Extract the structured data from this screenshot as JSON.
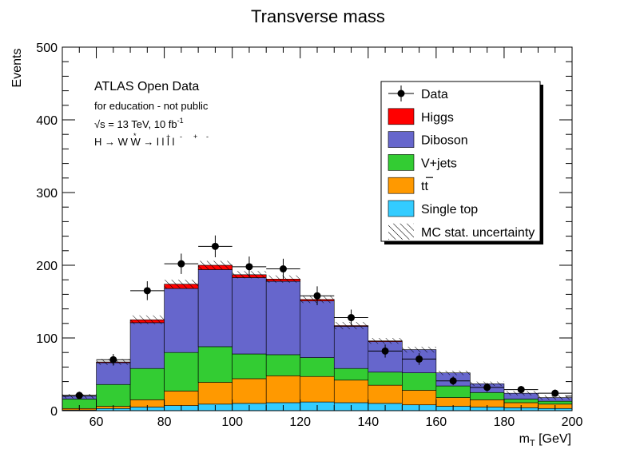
{
  "chart_data": {
    "type": "bar",
    "title": "Transverse mass",
    "xlabel": "m_T [GeV]",
    "xlabel_main": "m",
    "xlabel_sub": "T",
    "xlabel_unit": " [GeV]",
    "ylabel": "Events",
    "xlim": [
      50,
      200
    ],
    "ylim": [
      0,
      500
    ],
    "x_ticks": [
      60,
      80,
      100,
      120,
      140,
      160,
      180,
      200
    ],
    "y_ticks": [
      0,
      100,
      200,
      300,
      400,
      500
    ],
    "bin_edges": [
      50,
      60,
      70,
      80,
      90,
      100,
      110,
      120,
      130,
      140,
      150,
      160,
      170,
      180,
      190,
      200
    ],
    "stack_order": [
      "Single top",
      "tt",
      "V+jets",
      "Diboson",
      "Higgs"
    ],
    "series": [
      {
        "name": "Single top",
        "color": "#33ccff",
        "values": [
          1,
          3,
          5,
          7,
          9,
          10,
          11,
          12,
          11,
          10,
          8,
          6,
          5,
          4,
          3
        ]
      },
      {
        "name": "tt",
        "color": "#ff9900",
        "values": [
          2,
          3,
          10,
          20,
          30,
          34,
          37,
          35,
          31,
          25,
          20,
          12,
          10,
          7,
          6
        ]
      },
      {
        "name": "V+jets",
        "color": "#33cc33",
        "values": [
          13,
          30,
          43,
          53,
          49,
          34,
          29,
          26,
          16,
          18,
          24,
          16,
          10,
          5,
          4
        ]
      },
      {
        "name": "Diboson",
        "color": "#6666cc",
        "values": [
          4,
          30,
          63,
          88,
          106,
          105,
          101,
          78,
          58,
          42,
          32,
          18,
          12,
          8,
          5
        ]
      },
      {
        "name": "Higgs",
        "color": "#ff0000",
        "values": [
          0,
          1,
          4,
          6,
          6,
          4,
          3,
          2,
          1,
          1,
          0,
          0,
          0,
          0,
          0
        ]
      }
    ],
    "mc_uncertainty": [
      3,
      4,
      6,
      6,
      6,
      5,
      5,
      5,
      5,
      4,
      4,
      3,
      3,
      3,
      3
    ],
    "data": {
      "name": "Data",
      "x": [
        55,
        65,
        75,
        85,
        95,
        105,
        115,
        125,
        135,
        145,
        155,
        165,
        175,
        185,
        195
      ],
      "y": [
        21,
        70,
        165,
        202,
        226,
        198,
        195,
        158,
        128,
        82,
        71,
        41,
        32,
        29,
        24
      ],
      "yerr": [
        5,
        8,
        13,
        14,
        15,
        14,
        14,
        13,
        11,
        9,
        8,
        6,
        6,
        5,
        5
      ]
    },
    "legend": {
      "position": "top-right",
      "entries": [
        {
          "label": "Data",
          "kind": "marker"
        },
        {
          "label": "Higgs",
          "kind": "box",
          "color": "#ff0000"
        },
        {
          "label": "Diboson",
          "kind": "box",
          "color": "#6666cc"
        },
        {
          "label": "V+jets",
          "kind": "box",
          "color": "#33cc33"
        },
        {
          "label": "tt",
          "kind": "box-ttbar",
          "color": "#ff9900"
        },
        {
          "label": "Single top",
          "kind": "box",
          "color": "#33ccff"
        },
        {
          "label": "MC stat. uncertainty",
          "kind": "hatch"
        }
      ]
    },
    "annotations": {
      "line1": "ATLAS Open Data",
      "line2": "for education - not public",
      "line3_prefix": "√s = 13 TeV, 10 fb",
      "line3_sup": "-1",
      "line4": "H → W W  → l  l  l  l"
    }
  }
}
